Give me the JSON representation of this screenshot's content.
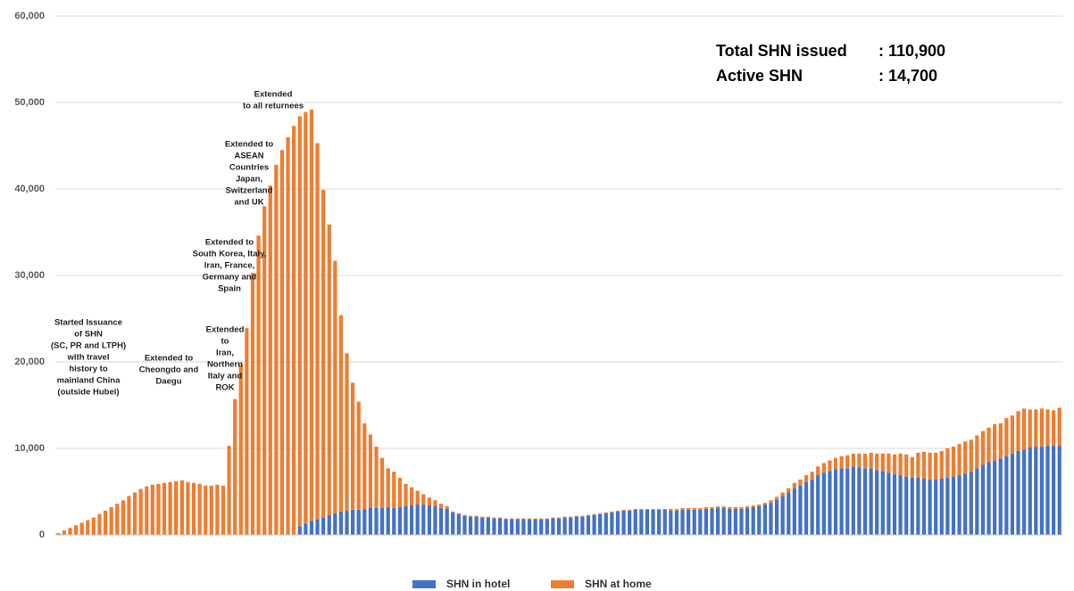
{
  "chart_data": {
    "type": "stacked_bar",
    "categories": [
      null,
      null,
      null,
      null,
      null,
      null,
      null,
      null,
      null,
      null,
      null,
      null,
      null,
      null,
      null,
      null,
      null,
      null,
      null,
      null,
      null,
      null,
      null,
      null,
      null,
      null,
      null,
      null,
      null,
      null,
      null,
      null,
      null,
      null,
      null,
      null,
      null,
      null,
      null,
      null,
      null,
      null,
      null,
      null,
      null,
      null,
      null,
      null,
      null,
      null,
      null,
      null,
      null,
      null,
      null,
      null,
      null,
      null,
      null,
      null,
      null,
      null,
      null,
      null,
      null,
      null,
      null,
      null,
      null,
      null,
      null,
      null,
      null,
      null,
      null,
      null,
      null,
      null,
      null,
      null,
      null,
      null,
      null,
      null,
      null,
      null,
      null,
      null,
      null,
      null,
      null,
      null,
      null,
      null,
      null,
      null,
      null,
      null,
      null,
      null,
      null,
      null,
      null,
      null,
      null,
      null,
      null,
      null,
      null,
      null,
      null,
      null,
      null,
      null,
      null,
      null,
      null,
      null,
      null,
      null,
      null,
      null,
      null,
      null,
      null,
      null,
      null,
      null,
      null,
      null,
      null,
      null,
      null,
      null,
      null,
      null,
      null,
      null,
      null,
      null,
      null,
      null,
      null,
      null,
      null,
      null,
      null,
      null,
      null,
      null,
      null,
      null,
      null,
      null,
      null,
      null,
      null,
      null,
      null,
      null,
      null,
      null,
      null,
      null,
      null,
      null,
      null,
      null,
      null,
      null,
      null
    ],
    "series": [
      {
        "name": "SHN in hotel",
        "color": "#4472c4",
        "values": [
          0,
          0,
          0,
          0,
          0,
          0,
          0,
          0,
          0,
          0,
          0,
          0,
          0,
          0,
          0,
          0,
          0,
          0,
          0,
          0,
          0,
          0,
          0,
          0,
          0,
          0,
          0,
          0,
          0,
          0,
          0,
          0,
          0,
          0,
          0,
          0,
          0,
          0,
          0,
          0,
          0,
          1000,
          1300,
          1600,
          1800,
          2000,
          2300,
          2500,
          2700,
          2800,
          2900,
          2900,
          3000,
          3100,
          3100,
          3100,
          3200,
          3100,
          3200,
          3300,
          3400,
          3500,
          3500,
          3400,
          3300,
          3100,
          3000,
          2600,
          2400,
          2200,
          2100,
          2100,
          2000,
          2000,
          1900,
          1900,
          1800,
          1800,
          1800,
          1800,
          1800,
          1800,
          1800,
          1800,
          1900,
          1900,
          2000,
          2000,
          2100,
          2100,
          2200,
          2300,
          2400,
          2500,
          2600,
          2700,
          2800,
          2800,
          2900,
          2900,
          2900,
          2900,
          2900,
          2900,
          2800,
          2800,
          2900,
          2900,
          2900,
          2900,
          3000,
          3000,
          3100,
          3100,
          3000,
          3000,
          3000,
          3100,
          3200,
          3300,
          3500,
          3700,
          4100,
          4500,
          4900,
          5400,
          5700,
          6100,
          6400,
          6900,
          7200,
          7400,
          7600,
          7700,
          7700,
          7900,
          7800,
          7700,
          7700,
          7500,
          7400,
          7200,
          7000,
          6900,
          6700,
          6600,
          6600,
          6500,
          6400,
          6400,
          6500,
          6600,
          6700,
          6900,
          7100,
          7300,
          7700,
          8100,
          8400,
          8600,
          8800,
          9100,
          9400,
          9700,
          9900,
          10100,
          10200,
          10200,
          10300,
          10300,
          10300
        ]
      },
      {
        "name": "SHN at home",
        "color": "#ed7d31",
        "values": [
          200,
          500,
          800,
          1100,
          1400,
          1700,
          2000,
          2400,
          2800,
          3200,
          3600,
          4000,
          4500,
          4900,
          5300,
          5600,
          5800,
          5900,
          6000,
          6100,
          6200,
          6300,
          6100,
          6000,
          5900,
          5700,
          5700,
          5800,
          5700,
          10300,
          15700,
          19700,
          23900,
          30300,
          34600,
          38000,
          40400,
          42800,
          44500,
          46000,
          47300,
          47400,
          47600,
          47600,
          43500,
          37900,
          33600,
          29200,
          22700,
          18200,
          14700,
          12500,
          9900,
          8500,
          7100,
          5800,
          4500,
          4200,
          3400,
          2600,
          2100,
          1600,
          1200,
          900,
          700,
          500,
          300,
          100,
          100,
          100,
          100,
          100,
          100,
          100,
          100,
          100,
          100,
          100,
          100,
          100,
          100,
          100,
          100,
          100,
          100,
          100,
          100,
          100,
          100,
          100,
          100,
          100,
          100,
          100,
          100,
          100,
          100,
          100,
          100,
          100,
          100,
          100,
          100,
          100,
          200,
          200,
          200,
          200,
          200,
          200,
          200,
          200,
          200,
          200,
          200,
          200,
          200,
          200,
          200,
          200,
          200,
          300,
          300,
          400,
          500,
          600,
          700,
          800,
          900,
          1000,
          1100,
          1200,
          1300,
          1400,
          1500,
          1500,
          1600,
          1700,
          1800,
          1900,
          2000,
          2200,
          2300,
          2500,
          2600,
          2400,
          2900,
          3100,
          3100,
          3100,
          3200,
          3400,
          3500,
          3600,
          3700,
          3700,
          3800,
          3900,
          4000,
          4200,
          4100,
          4400,
          4400,
          4600,
          4700,
          4400,
          4300,
          4400,
          4200,
          4100,
          4400
        ]
      }
    ],
    "ylim": [
      0,
      60000
    ],
    "yticks": [
      0,
      {
        "value": 10000,
        "label": "10,000"
      },
      {
        "value": 20000,
        "label": "20,000"
      },
      {
        "value": 30000,
        "label": "30,000"
      },
      {
        "value": 40000,
        "label": "40,000"
      },
      {
        "value": 50000,
        "label": "50,000"
      },
      {
        "value": 60000,
        "label": "60,000"
      }
    ],
    "grid": true,
    "legend": "bottom",
    "summary": [
      {
        "label": "Total SHN issued",
        "value": ": 110,900"
      },
      {
        "label": "Active SHN",
        "value": ": 14,700"
      }
    ],
    "annotations": [
      {
        "lines": [
          "Started Issuance",
          "of SHN",
          "(SC, PR and LTPH)",
          "with travel",
          "history to",
          "mainland China",
          "(outside Hubei)"
        ]
      },
      {
        "lines": [
          "Extended to",
          "Cheongdo and",
          "Daegu"
        ]
      },
      {
        "lines": [
          "Extended",
          "to",
          "Iran,",
          "Northern",
          "Italy and",
          "ROK"
        ]
      },
      {
        "lines": [
          "Extended to",
          "South Korea, Italy,",
          "Iran, France,",
          "Germany and",
          "Spain"
        ]
      },
      {
        "lines": [
          "Extended to",
          "ASEAN",
          "Countries",
          "Japan,",
          "Switzerland",
          "and UK"
        ]
      },
      {
        "lines": [
          "Extended",
          "to all returnees"
        ]
      }
    ]
  }
}
